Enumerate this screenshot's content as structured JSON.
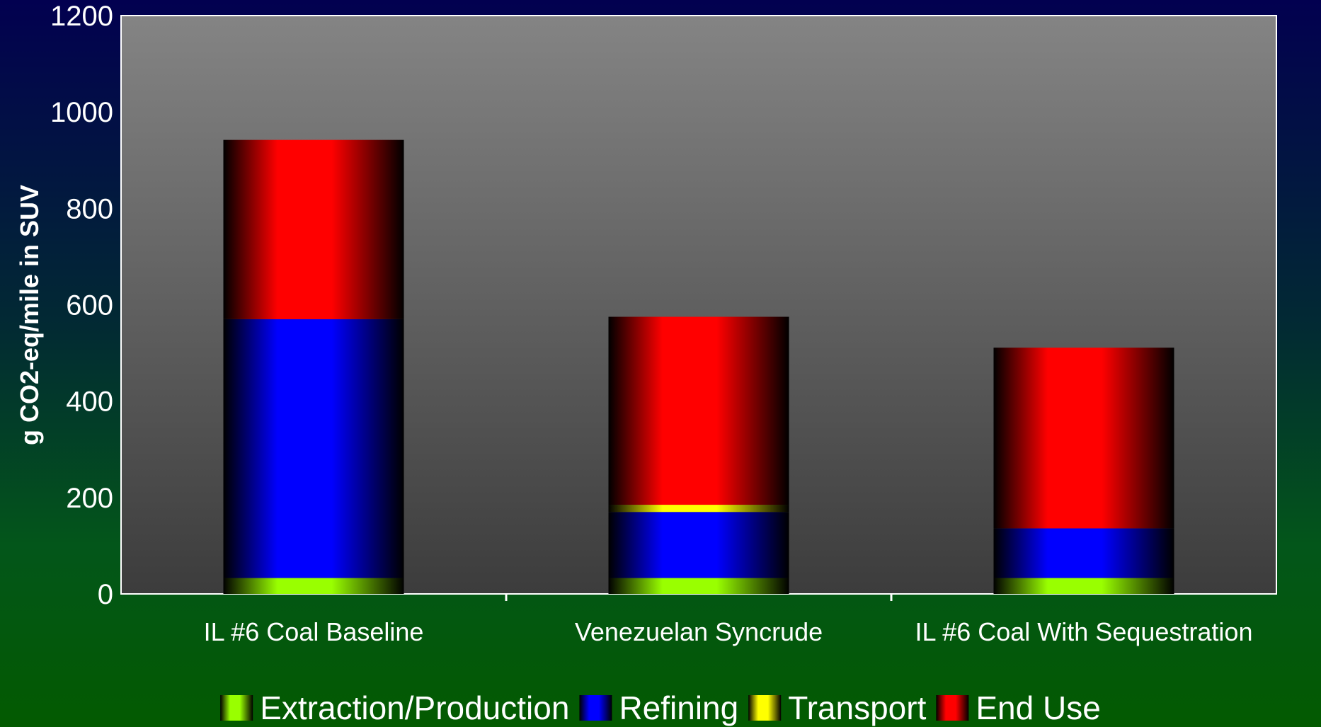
{
  "chart_data": {
    "type": "bar",
    "stacked": true,
    "categories": [
      "IL #6 Coal Baseline",
      "Venezuelan Syncrude",
      "IL #6 Coal With Sequestration"
    ],
    "series": [
      {
        "name": "Extraction/Production",
        "color": "#99ff00",
        "values": [
          33,
          33,
          33
        ]
      },
      {
        "name": "Refining",
        "color": "#0000ff",
        "values": [
          537,
          137,
          103
        ]
      },
      {
        "name": "Transport",
        "color": "#ffff00",
        "values": [
          0,
          15,
          0
        ]
      },
      {
        "name": "End Use",
        "color": "#ff0000",
        "values": [
          372,
          390,
          375
        ]
      }
    ],
    "xlabel": "",
    "ylabel": "g CO2-eq/mile in SUV",
    "ylim": [
      0,
      1200
    ],
    "yticks": [
      0,
      200,
      400,
      600,
      800,
      1000,
      1200
    ],
    "grid": false,
    "legend_position": "bottom"
  }
}
